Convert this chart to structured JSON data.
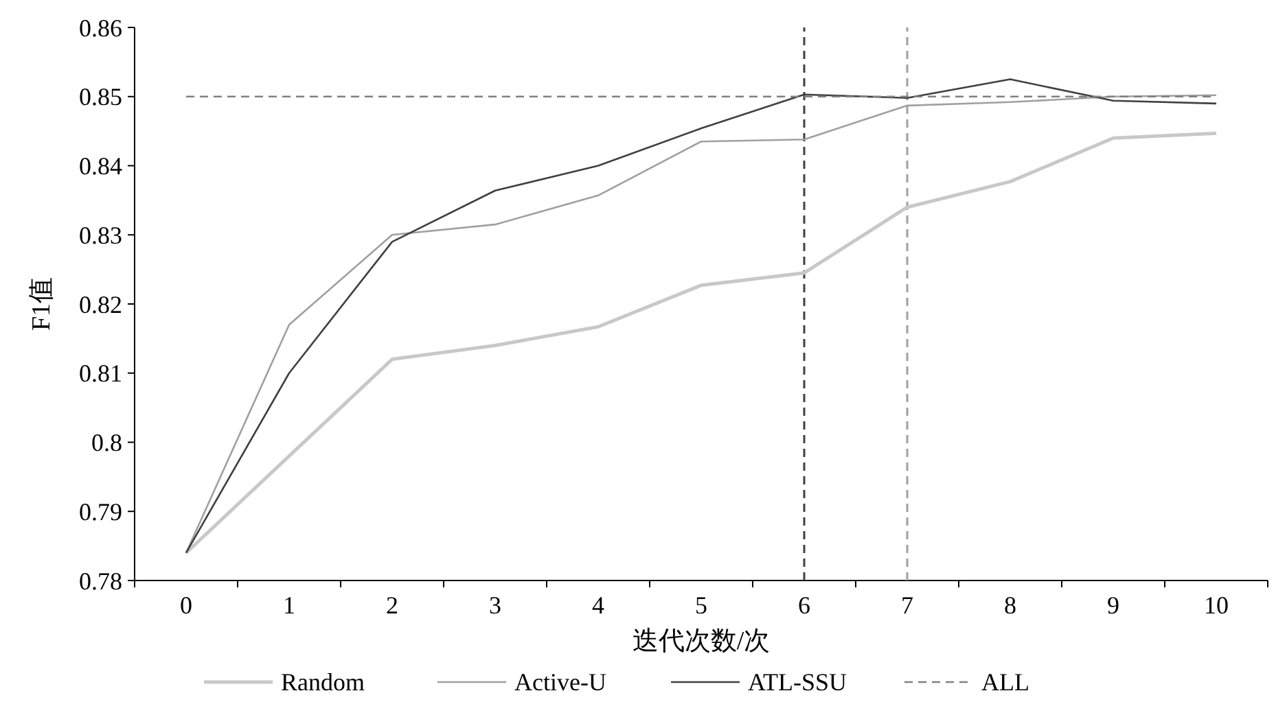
{
  "chart_data": {
    "type": "line",
    "xlabel": "迭代次数/次",
    "ylabel": "F1值",
    "categories": [
      "0",
      "1",
      "2",
      "3",
      "4",
      "5",
      "6",
      "7",
      "8",
      "9",
      "10"
    ],
    "ylim": [
      0.78,
      0.86
    ],
    "yticks": [
      0.78,
      0.79,
      {
        "value": 0.8,
        "label": "0.8"
      },
      0.81,
      0.82,
      0.83,
      0.84,
      0.85,
      0.86
    ],
    "series": [
      {
        "name": "Random",
        "color": "#c8c8c8",
        "values": [
          0.784,
          0.798,
          0.812,
          0.814,
          0.8167,
          0.8227,
          0.8245,
          0.834,
          0.8377,
          0.844,
          0.8447
        ]
      },
      {
        "name": "Active-U",
        "color": "#a0a0a0",
        "values": [
          0.784,
          0.817,
          0.83,
          0.8315,
          0.8357,
          0.8435,
          0.8438,
          0.8487,
          0.8492,
          0.85,
          0.8502
        ]
      },
      {
        "name": "ATL-SSU",
        "color": "#404040",
        "values": [
          0.784,
          0.81,
          0.829,
          0.8364,
          0.84,
          0.8454,
          0.8503,
          0.8498,
          0.8525,
          0.8494,
          0.849
        ]
      },
      {
        "name": "ALL",
        "color": "#808080",
        "line_style": "dashed",
        "values": [
          0.85,
          0.85,
          0.85,
          0.85,
          0.85,
          0.85,
          0.85,
          0.85,
          0.85,
          0.85,
          0.85
        ]
      }
    ],
    "ref_lines": [
      {
        "axis": "x",
        "value": "6",
        "color": "#404040",
        "line_style": "dashed"
      },
      {
        "axis": "x",
        "value": "7",
        "color": "#a0a0a0",
        "line_style": "dashed"
      }
    ],
    "grid": false,
    "legend": "bottom",
    "marker": "none"
  }
}
